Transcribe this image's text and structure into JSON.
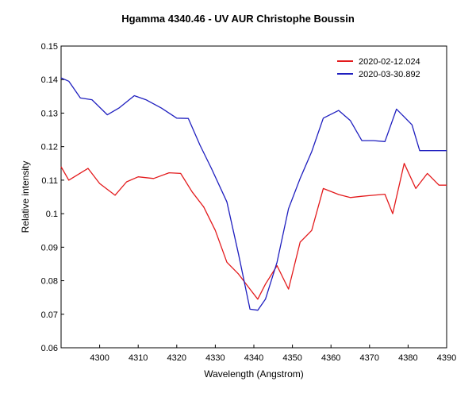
{
  "chart_data": {
    "type": "line",
    "title": "Hgamma 4340.46 - UV AUR   Christophe Boussin",
    "xlabel": "Wavelength (Angstrom)",
    "ylabel": "Relative intensity",
    "xlim": [
      4290,
      4390
    ],
    "ylim": [
      0.06,
      0.15
    ],
    "x_ticks": [
      4300,
      4310,
      4320,
      4330,
      4340,
      4350,
      4360,
      4370,
      4380,
      4390
    ],
    "x_tick_labels": [
      "4300",
      "4310",
      "4320",
      "4330",
      "4340",
      "4350",
      "4360",
      "4370",
      "4380",
      "4390"
    ],
    "y_ticks": [
      0.06,
      0.07,
      0.08,
      0.09,
      0.1,
      0.11,
      0.12,
      0.13,
      0.14,
      0.15
    ],
    "y_tick_labels": [
      "0.06",
      "0.07",
      "0.08",
      "0.09",
      "0.1",
      "0.11",
      "0.12",
      "0.13",
      "0.14",
      "0.15"
    ],
    "grid": false,
    "legend_position": "top-right",
    "series": [
      {
        "name": "2020-02-12.024",
        "color": "#e31a1c",
        "x": [
          4290,
          4292,
          4297,
          4300,
          4304,
          4307,
          4310,
          4314,
          4318,
          4321,
          4324,
          4327,
          4330,
          4333,
          4336,
          4339,
          4341,
          4343,
          4346,
          4349,
          4352,
          4355,
          4358,
          4362,
          4365,
          4368,
          4371,
          4374,
          4376,
          4379,
          4382,
          4385,
          4388,
          4390
        ],
        "y": [
          0.114,
          0.11,
          0.1135,
          0.109,
          0.1055,
          0.1095,
          0.111,
          0.1105,
          0.1122,
          0.112,
          0.1065,
          0.102,
          0.095,
          0.0855,
          0.082,
          0.0775,
          0.0745,
          0.079,
          0.0845,
          0.0775,
          0.0915,
          0.095,
          0.1075,
          0.1057,
          0.1048,
          0.1052,
          0.1055,
          0.1058,
          0.1,
          0.115,
          0.1075,
          0.112,
          0.1085,
          0.1085
        ]
      },
      {
        "name": "2020-03-30.892",
        "color": "#1f1fbf",
        "x": [
          4290,
          4292,
          4295,
          4298,
          4302,
          4305,
          4309,
          4312,
          4316,
          4320,
          4323,
          4326,
          4329,
          4333,
          4336,
          4339,
          4341,
          4343,
          4346,
          4349,
          4352,
          4355,
          4358,
          4362,
          4365,
          4368,
          4371,
          4374,
          4377,
          4381,
          4383,
          4386,
          4390
        ],
        "y": [
          0.1405,
          0.1395,
          0.1345,
          0.134,
          0.1295,
          0.1315,
          0.1352,
          0.134,
          0.1315,
          0.1285,
          0.1284,
          0.1205,
          0.1135,
          0.1035,
          0.088,
          0.0715,
          0.0712,
          0.0745,
          0.0855,
          0.1015,
          0.1105,
          0.1185,
          0.1285,
          0.1308,
          0.1278,
          0.1218,
          0.1218,
          0.1215,
          0.1312,
          0.1265,
          0.1188,
          0.1188,
          0.1188
        ]
      }
    ]
  }
}
